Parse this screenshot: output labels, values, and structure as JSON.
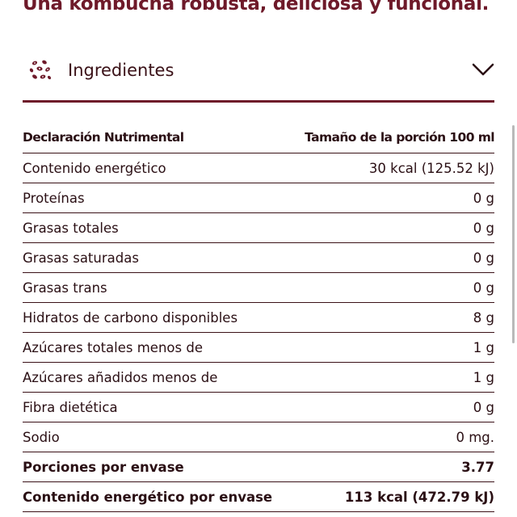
{
  "headline": "Una kombucha robusta, deliciosa y funcional.",
  "accordion": {
    "label": "Ingredientes",
    "icon": "seeds-icon",
    "toggle_icon": "chevron-down-icon",
    "expanded": false
  },
  "colors": {
    "brand": "#6e1a2a",
    "text": "#2a0f14",
    "divider": "#3a1117"
  },
  "nutrition": {
    "header": {
      "label": "Declaración Nutrimental",
      "value": "Tamaño de la porción 100 ml"
    },
    "rows": [
      {
        "label": "Contenido energético",
        "value": "30 kcal (125.52 kJ)"
      },
      {
        "label": "Proteínas",
        "value": "0 g"
      },
      {
        "label": "Grasas totales",
        "value": "0 g"
      },
      {
        "label": "Grasas saturadas",
        "value": "0 g"
      },
      {
        "label": "Grasas trans",
        "value": "0 g"
      },
      {
        "label": "Hidratos de carbono disponibles",
        "value": "8 g"
      },
      {
        "label": "Azúcares totales menos de",
        "value": "1 g"
      },
      {
        "label": "Azúcares añadidos menos de",
        "value": "1 g"
      },
      {
        "label": "Fibra dietética",
        "value": "0 g"
      },
      {
        "label": "Sodio",
        "value": "0 mg."
      }
    ],
    "footer": [
      {
        "label": "Porciones por envase",
        "value": "3.77"
      },
      {
        "label": "Contenido energético por envase",
        "value": "113 kcal (472.79 kJ)"
      }
    ]
  }
}
